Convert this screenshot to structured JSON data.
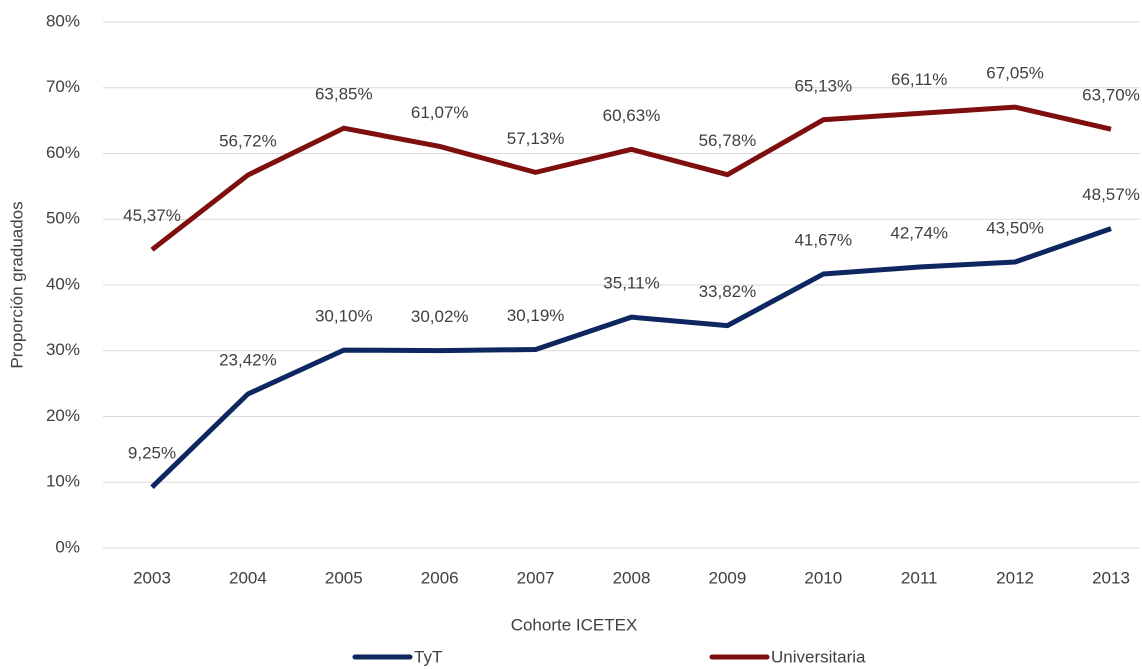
{
  "chart_data": {
    "type": "line",
    "x_label": "Cohorte ICETEX",
    "y_label": "Proporción graduados",
    "categories": [
      "2003",
      "2004",
      "2005",
      "2006",
      "2007",
      "2008",
      "2009",
      "2010",
      "2011",
      "2012",
      "2013"
    ],
    "series": [
      {
        "name": "TyT",
        "color": "#0e2760",
        "values": [
          9.25,
          23.42,
          30.1,
          30.02,
          30.19,
          35.11,
          33.82,
          41.67,
          42.74,
          43.5,
          48.57
        ],
        "value_labels": [
          "9,25%",
          "23,42%",
          "30,10%",
          "30,02%",
          "30,19%",
          "35,11%",
          "33,82%",
          "41,67%",
          "42,74%",
          "43,50%",
          "48,57%"
        ]
      },
      {
        "name": "Universitaria",
        "color": "#7f0f0f",
        "values": [
          45.37,
          56.72,
          63.85,
          61.07,
          57.13,
          60.63,
          56.78,
          65.13,
          66.11,
          67.05,
          63.7
        ],
        "value_labels": [
          "45,37%",
          "56,72%",
          "63,85%",
          "61,07%",
          "57,13%",
          "60,63%",
          "56,78%",
          "65,13%",
          "66,11%",
          "67,05%",
          "63,70%"
        ]
      }
    ],
    "ylim": [
      0,
      80
    ],
    "yticks": [
      {
        "value": 0,
        "label": "0%"
      },
      {
        "value": 10,
        "label": "10%"
      },
      {
        "value": 20,
        "label": "20%"
      },
      {
        "value": 30,
        "label": "30%"
      },
      {
        "value": 40,
        "label": "40%"
      },
      {
        "value": 50,
        "label": "50%"
      },
      {
        "value": 60,
        "label": "60%"
      },
      {
        "value": 70,
        "label": "70%"
      },
      {
        "value": 80,
        "label": "80%"
      }
    ],
    "grid": true,
    "legend": "bottom"
  }
}
